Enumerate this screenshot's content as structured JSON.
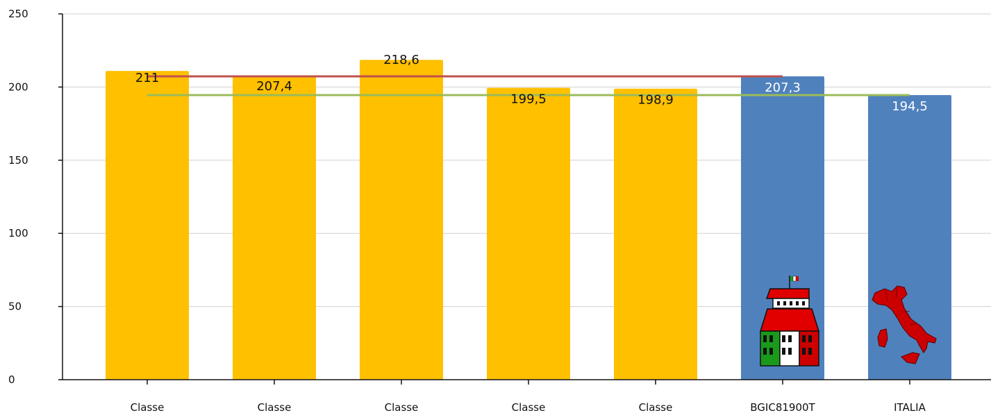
{
  "chart_data": {
    "type": "bar",
    "categories": [
      "Classe",
      "Classe",
      "Classe",
      "Classe",
      "Classe",
      "BGIC81900T",
      "ITALIA"
    ],
    "values": [
      211,
      207.4,
      218.6,
      199.5,
      198.9,
      207.3,
      194.5
    ],
    "value_labels": [
      "211",
      "207,4",
      "218,6",
      "199,5",
      "198,9",
      "207,3",
      "194,5"
    ],
    "bar_colors": [
      "#FFC000",
      "#FFC000",
      "#FFC000",
      "#FFC000",
      "#FFC000",
      "#4F81BD",
      "#4F81BD"
    ],
    "label_colors": [
      "#111111",
      "#111111",
      "#111111",
      "#111111",
      "#111111",
      "#ffffff",
      "#ffffff"
    ],
    "ylim": [
      0,
      250
    ],
    "yticks": [
      0,
      50,
      100,
      150,
      200,
      250
    ],
    "grid": true,
    "reference_lines": [
      {
        "value": 207.3,
        "color": "#C0504D",
        "from_category": 0,
        "to_category": 5
      },
      {
        "value": 194.5,
        "color": "#9BBB59",
        "from_category": 0,
        "to_category": 6
      }
    ],
    "icons": [
      {
        "category": 5,
        "icon": "school-building-icon"
      },
      {
        "category": 6,
        "icon": "italy-map-icon"
      }
    ]
  }
}
